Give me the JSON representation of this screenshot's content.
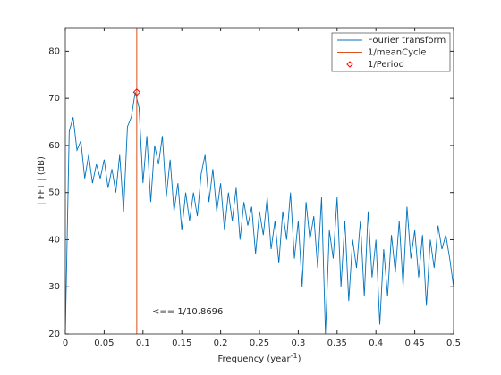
{
  "chart_data": {
    "type": "line",
    "xlabel": {
      "text": "Frequency (year",
      "superscript": "-1",
      "suffix": ")"
    },
    "ylabel": "| FFT | (dB)",
    "annotation": "<== 1/10.8696",
    "xlim": [
      0,
      0.5
    ],
    "xticks": [
      0,
      0.05,
      0.1,
      0.15,
      0.2,
      0.25,
      0.3,
      0.35,
      0.4,
      0.45,
      0.5
    ],
    "ylim": [
      20,
      85
    ],
    "yticks": [
      20,
      30,
      40,
      50,
      60,
      70,
      80
    ],
    "legend": "upper right",
    "series": [
      {
        "name": "Fourier transform",
        "color": "#0072bd",
        "x": [
          0,
          0.005,
          0.01,
          0.015,
          0.02,
          0.025,
          0.03,
          0.035,
          0.04,
          0.045,
          0.05,
          0.055,
          0.06,
          0.065,
          0.07,
          0.075,
          0.08,
          0.085,
          0.09,
          0.095,
          0.1,
          0.105,
          0.11,
          0.115,
          0.12,
          0.125,
          0.13,
          0.135,
          0.14,
          0.145,
          0.15,
          0.155,
          0.16,
          0.165,
          0.17,
          0.175,
          0.18,
          0.185,
          0.19,
          0.195,
          0.2,
          0.205,
          0.21,
          0.215,
          0.22,
          0.225,
          0.23,
          0.235,
          0.24,
          0.245,
          0.25,
          0.255,
          0.26,
          0.265,
          0.27,
          0.275,
          0.28,
          0.285,
          0.29,
          0.295,
          0.3,
          0.305,
          0.31,
          0.315,
          0.32,
          0.325,
          0.33,
          0.335,
          0.34,
          0.345,
          0.35,
          0.355,
          0.36,
          0.365,
          0.37,
          0.375,
          0.38,
          0.385,
          0.39,
          0.395,
          0.4,
          0.405,
          0.41,
          0.415,
          0.42,
          0.425,
          0.43,
          0.435,
          0.44,
          0.445,
          0.45,
          0.455,
          0.46,
          0.465,
          0.47,
          0.475,
          0.48,
          0.485,
          0.49,
          0.495,
          0.5
        ],
        "values": [
          20,
          63,
          66,
          59,
          61,
          53,
          58,
          52,
          56,
          53,
          57,
          51,
          55,
          50,
          58,
          46,
          64,
          66,
          71.3,
          68,
          52,
          62,
          48,
          60,
          56,
          62,
          49,
          57,
          46,
          52,
          42,
          50,
          44,
          50,
          45,
          54,
          58,
          48,
          55,
          46,
          52,
          42,
          50,
          44,
          51,
          40,
          48,
          43,
          47,
          37,
          46,
          41,
          49,
          38,
          44,
          35,
          46,
          40,
          50,
          36,
          44,
          30,
          48,
          40,
          45,
          34,
          49,
          20,
          42,
          36,
          49,
          30,
          44,
          27,
          40,
          34,
          44,
          28,
          46,
          32,
          40,
          22,
          38,
          28,
          41,
          33,
          44,
          30,
          47,
          36,
          42,
          32,
          41,
          26,
          40,
          34,
          43,
          38,
          41,
          36,
          30
        ]
      },
      {
        "name": "1/meanCycle",
        "color": "#d95319",
        "x": [
          0.092
        ]
      },
      {
        "name": "1/Period",
        "color": "#ff0000",
        "x": [
          0.092
        ],
        "values": [
          71.3
        ]
      }
    ]
  }
}
